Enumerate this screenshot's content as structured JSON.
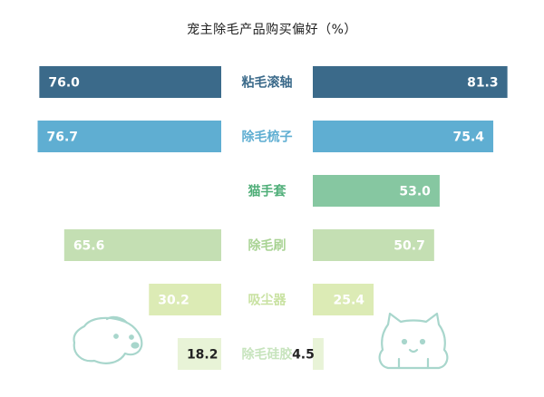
{
  "chart_data": {
    "type": "bar",
    "title": "宠主除毛产品购买偏好（%）",
    "categories": [
      "粘毛滚轴",
      "除毛梳子",
      "猫手套",
      "除毛刷",
      "吸尘器",
      "除毛硅胶"
    ],
    "series": [
      {
        "values": [
          76.0,
          76.7,
          null,
          65.6,
          30.2,
          18.2
        ]
      },
      {
        "values": [
          81.3,
          75.4,
          53.0,
          50.7,
          25.4,
          4.5
        ]
      }
    ],
    "value_labels": {
      "left": [
        "76.0",
        "76.7",
        "",
        "65.6",
        "30.2",
        "18.2"
      ],
      "right": [
        "81.3",
        "75.4",
        "53.0",
        "50.7",
        "25.4",
        "4.5"
      ]
    },
    "xlim": [
      0,
      100
    ],
    "grid": false,
    "legend": "none",
    "colors": [
      "#3b6a8a",
      "#5faed2",
      "#86c7a1",
      "#c4dfb3",
      "#dcebb5",
      "#e8f3d7"
    ],
    "label_colors": [
      "#3b6a8a",
      "#5faed2",
      "#4fae78",
      "#a9d394",
      "#c9e2a2",
      "#c7e4bd"
    ],
    "value_label_colors": [
      "#ffffff",
      "#ffffff",
      "#ffffff",
      "#ffffff",
      "#ffffff",
      "#222222"
    ],
    "decorations": [
      "dog-icon",
      "cat-icon"
    ]
  }
}
